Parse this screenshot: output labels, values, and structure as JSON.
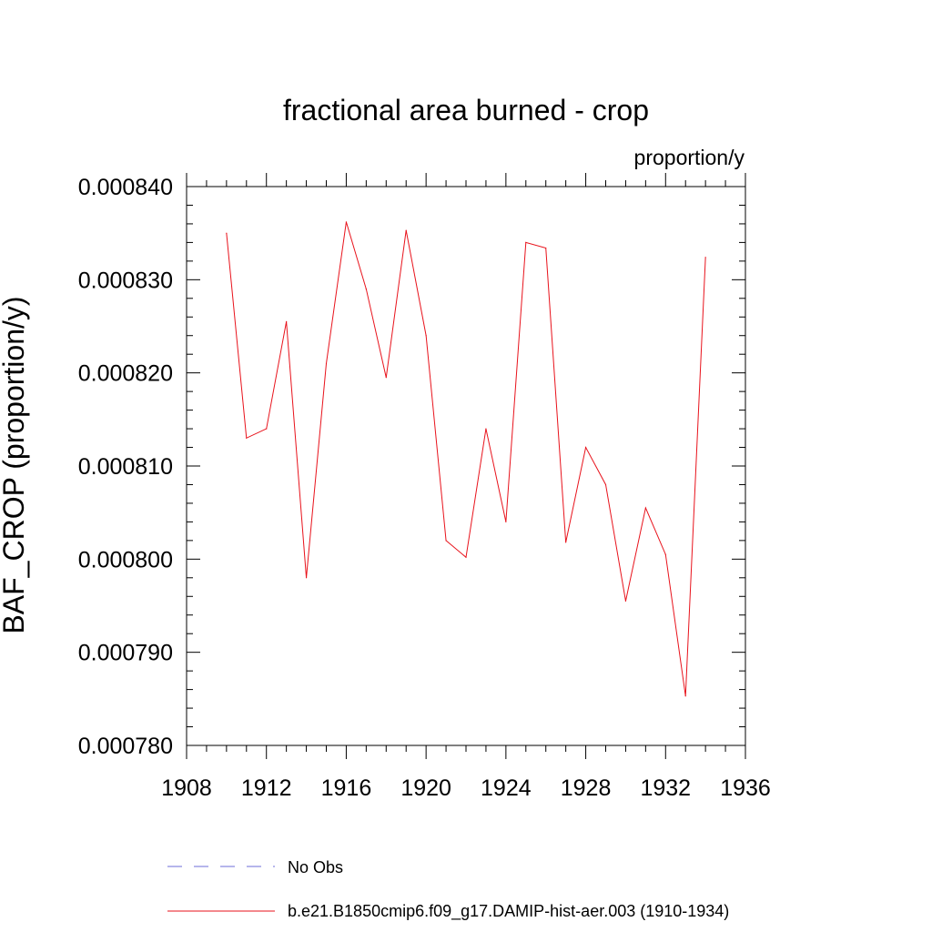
{
  "chart_data": {
    "type": "line",
    "title": "fractional area burned - crop",
    "units": "proportion/y",
    "xlabel": "",
    "ylabel": "BAF_CROP  (proportion/y)",
    "xlim": [
      1908,
      1936
    ],
    "ylim": [
      0.00078,
      0.00084
    ],
    "x_ticks": [
      1908,
      1912,
      1916,
      1920,
      1924,
      1928,
      1932,
      1936
    ],
    "x_tick_labels": [
      "1908",
      "1912",
      "1916",
      "1920",
      "1924",
      "1928",
      "1932",
      "1936"
    ],
    "y_ticks": [
      0.00078,
      0.00079,
      0.0008,
      0.00081,
      0.00082,
      0.00083,
      0.00084
    ],
    "y_tick_labels": [
      "0.000780",
      "0.000790",
      "0.000800",
      "0.000810",
      "0.000820",
      "0.000830",
      "0.000840"
    ],
    "grid": false,
    "legend_position": "bottom",
    "series": [
      {
        "name": "b.e21.B1850cmip6.f09_g17.DAMIP-hist-aer.003 (1910-1934)",
        "color": "#e8121b",
        "style": "solid",
        "x": [
          1910,
          1911,
          1912,
          1913,
          1914,
          1915,
          1916,
          1917,
          1918,
          1919,
          1920,
          1921,
          1922,
          1923,
          1924,
          1925,
          1926,
          1927,
          1928,
          1929,
          1930,
          1931,
          1932,
          1933,
          1934
        ],
        "y": [
          0.000835,
          0.000813,
          0.000814,
          0.0008255,
          0.000798,
          0.000821,
          0.0008362,
          0.000829,
          0.0008195,
          0.0008353,
          0.000824,
          0.000802,
          0.0008002,
          0.000814,
          0.000804,
          0.000834,
          0.0008334,
          0.0008018,
          0.000812,
          0.000808,
          0.0007955,
          0.0008055,
          0.0008005,
          0.0007853,
          0.0008324
        ]
      }
    ],
    "legend": [
      {
        "label": "No Obs",
        "color": "#6d6dd8",
        "style": "dashed"
      },
      {
        "label": "b.e21.B1850cmip6.f09_g17.DAMIP-hist-aer.003 (1910-1934)",
        "color": "#e8121b",
        "style": "solid"
      }
    ]
  }
}
